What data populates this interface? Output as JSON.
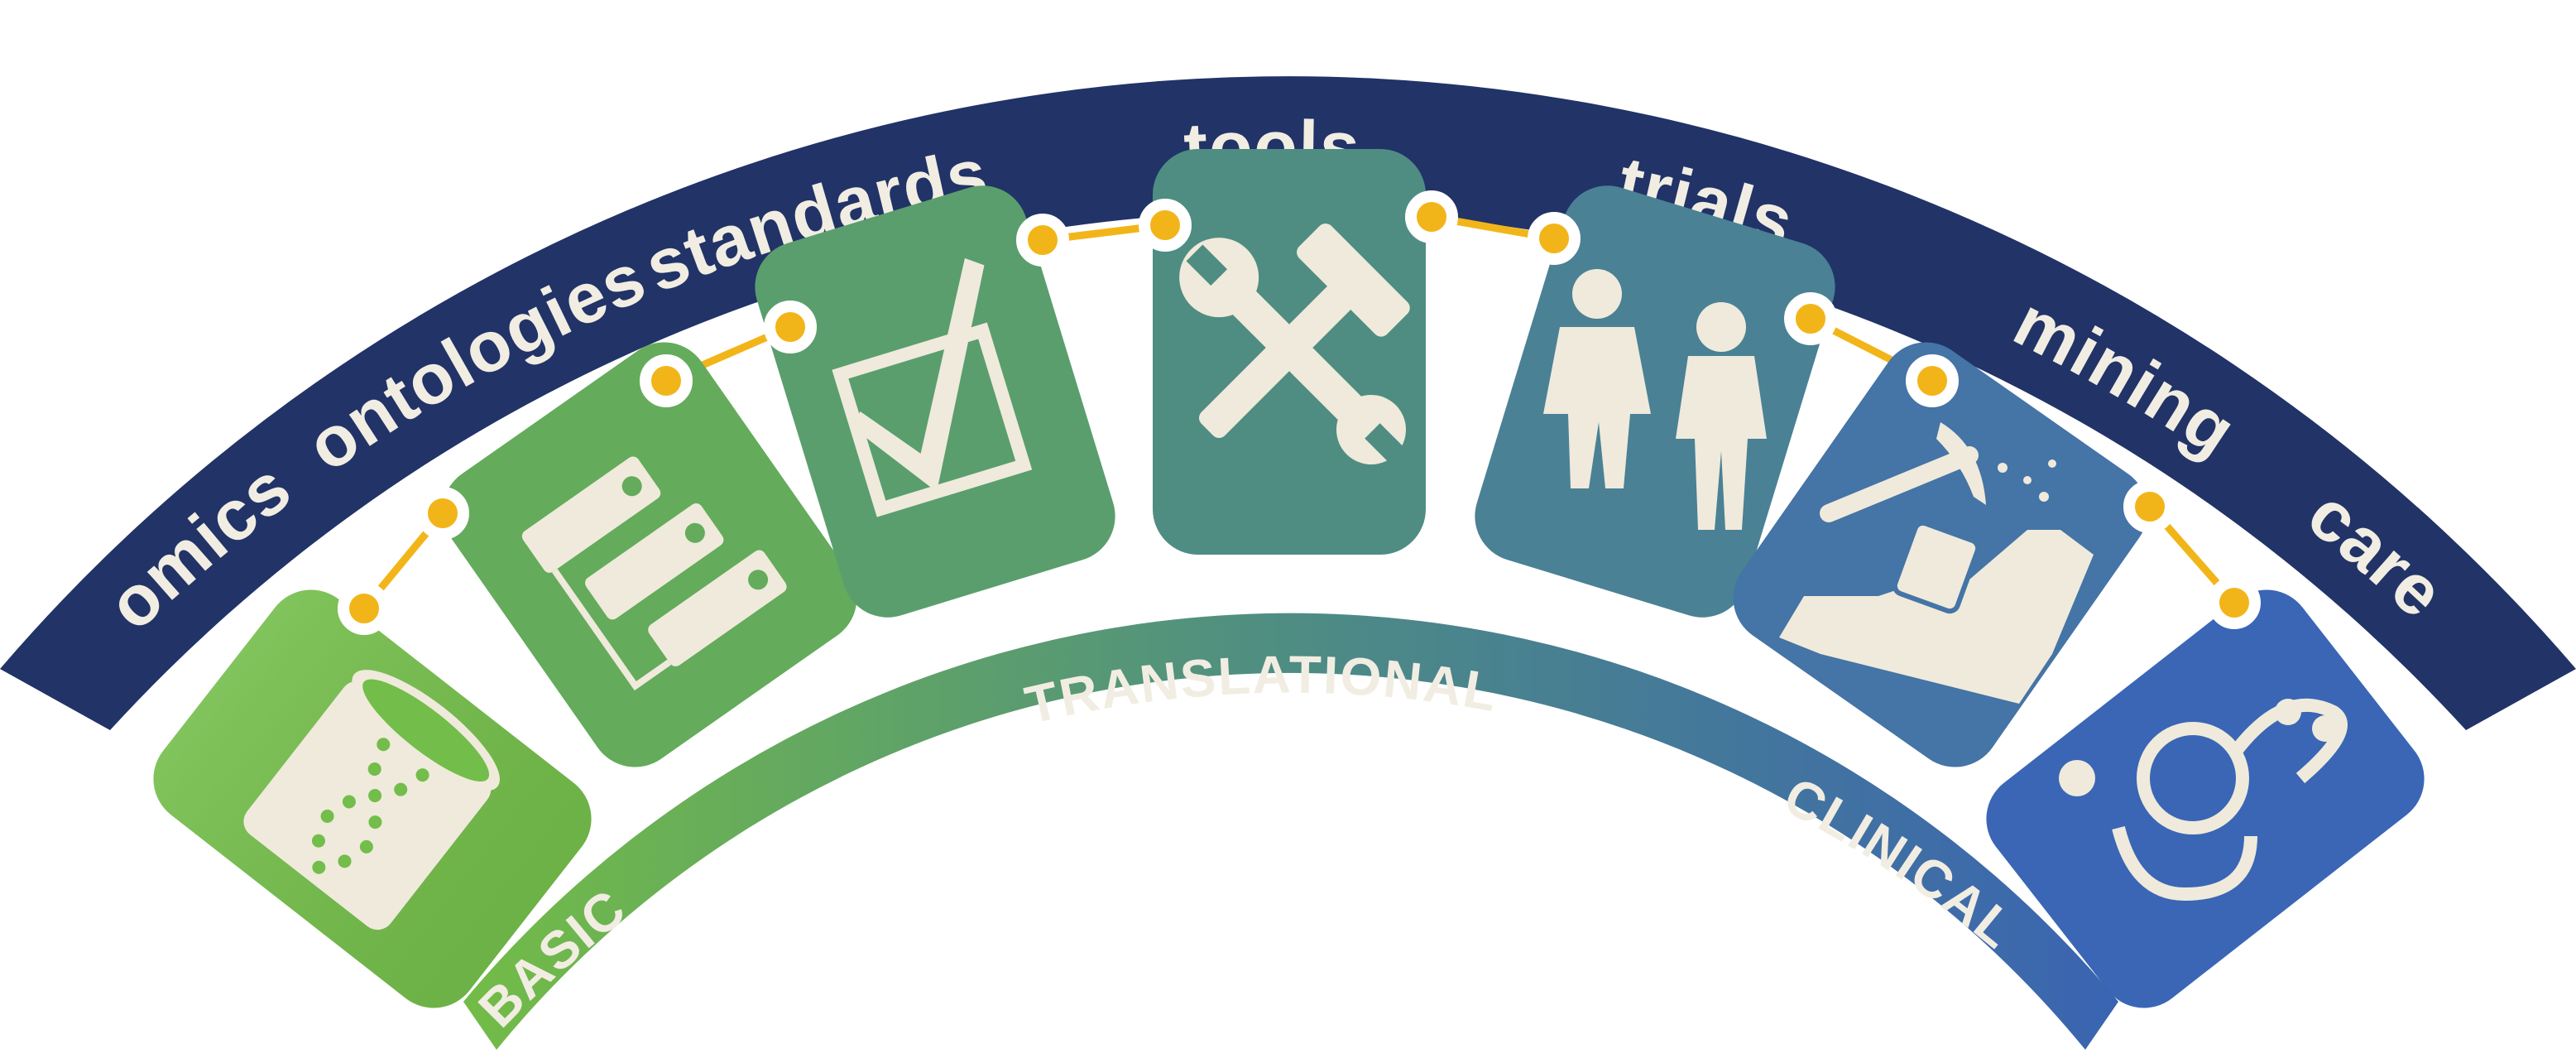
{
  "arc_words": [
    "omics",
    "ontologies",
    "standards",
    "tools",
    "trials",
    "mining",
    "care"
  ],
  "band_words": [
    "BASIC",
    "TRANSLATIONAL",
    "CLINICAL"
  ],
  "cards": [
    {
      "name": "omics",
      "icon": "dna-database-icon",
      "color": "#73bd4a"
    },
    {
      "name": "ontologies",
      "icon": "tags-icon",
      "color": "#64ab5c"
    },
    {
      "name": "standards",
      "icon": "checkbox-icon",
      "color": "#5a9e6e"
    },
    {
      "name": "tools",
      "icon": "hammer-wrench-icon",
      "color": "#4f8d82"
    },
    {
      "name": "trials",
      "icon": "doctor-patient-icon",
      "color": "#4a8195"
    },
    {
      "name": "mining",
      "icon": "pickaxe-data-icon",
      "color": "#4574a6"
    },
    {
      "name": "care",
      "icon": "stethoscope-icon",
      "color": "#3a66b5"
    }
  ],
  "colors": {
    "outer_arc": "#213367",
    "band_start": "#72bb48",
    "band_end": "#3a64b1",
    "connector": "#f2b519",
    "icon": "#efeadb"
  }
}
